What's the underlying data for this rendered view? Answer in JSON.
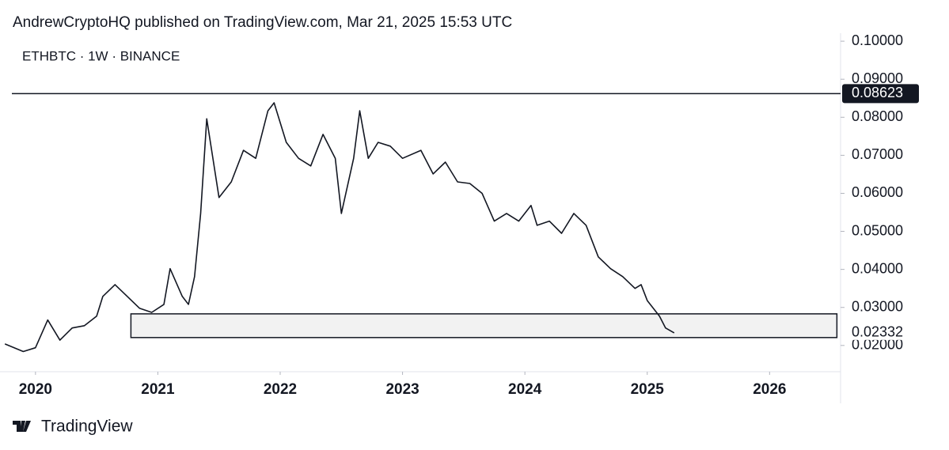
{
  "header": {
    "text": "AndrewCryptoHQ published on TradingView.com, Mar 21, 2025 15:53 UTC"
  },
  "footer": {
    "brand": "TradingView"
  },
  "chart_data": {
    "type": "line",
    "title": "ETHBTC · 1W · BINANCE",
    "x": [
      2019.75,
      2019.9,
      2020.0,
      2020.1,
      2020.2,
      2020.3,
      2020.4,
      2020.5,
      2020.55,
      2020.65,
      2020.75,
      2020.85,
      2020.95,
      2021.05,
      2021.1,
      2021.2,
      2021.25,
      2021.3,
      2021.35,
      2021.4,
      2021.5,
      2021.6,
      2021.7,
      2021.8,
      2021.9,
      2021.95,
      2022.05,
      2022.15,
      2022.25,
      2022.35,
      2022.45,
      2022.5,
      2022.6,
      2022.65,
      2022.72,
      2022.8,
      2022.9,
      2023.0,
      2023.15,
      2023.25,
      2023.35,
      2023.45,
      2023.55,
      2023.65,
      2023.75,
      2023.85,
      2023.95,
      2024.05,
      2024.1,
      2024.2,
      2024.3,
      2024.4,
      2024.5,
      2024.6,
      2024.7,
      2024.8,
      2024.9,
      2024.95,
      2025.0,
      2025.1,
      2025.15,
      2025.22
    ],
    "series": [
      {
        "name": "ETHBTC",
        "color": "#131722",
        "values": [
          0.0204,
          0.0184,
          0.0194,
          0.0267,
          0.0214,
          0.0246,
          0.0252,
          0.0277,
          0.0329,
          0.036,
          0.0329,
          0.0298,
          0.0287,
          0.0308,
          0.0402,
          0.0329,
          0.0308,
          0.0381,
          0.0547,
          0.0796,
          0.0589,
          0.063,
          0.0713,
          0.0692,
          0.0817,
          0.0838,
          0.0734,
          0.0692,
          0.0672,
          0.0755,
          0.0692,
          0.0547,
          0.0692,
          0.0817,
          0.0692,
          0.0734,
          0.0724,
          0.0692,
          0.0713,
          0.0651,
          0.0682,
          0.063,
          0.0626,
          0.06,
          0.0527,
          0.0547,
          0.0527,
          0.0568,
          0.0516,
          0.0527,
          0.0495,
          0.0547,
          0.0516,
          0.0433,
          0.0402,
          0.0381,
          0.035,
          0.036,
          0.0318,
          0.0277,
          0.0246,
          0.0233
        ]
      }
    ],
    "xlim": [
      2019.71,
      2026.58
    ],
    "xticks": [
      2020,
      2021,
      2022,
      2023,
      2024,
      2025,
      2026
    ],
    "ylim": [
      0.0131,
      0.1021
    ],
    "yticks": [
      {
        "value": 0.1,
        "label": "0.10000"
      },
      {
        "value": 0.09,
        "label": "0.09000"
      },
      {
        "value": 0.08,
        "label": "0.08000"
      },
      {
        "value": 0.07,
        "label": "0.07000"
      },
      {
        "value": 0.06,
        "label": "0.06000"
      },
      {
        "value": 0.05,
        "label": "0.05000"
      },
      {
        "value": 0.04,
        "label": "0.04000"
      },
      {
        "value": 0.03,
        "label": "0.03000"
      },
      {
        "value": 0.02,
        "label": "0.02000"
      }
    ],
    "level_line": {
      "value": 0.08623,
      "label": "0.08623"
    },
    "last_price": {
      "value": 0.02332,
      "label": "0.02332"
    },
    "zone": {
      "x": [
        2020.78,
        2026.55
      ],
      "y": [
        0.02208,
        0.02831
      ],
      "color": "#f2f2f2"
    }
  }
}
